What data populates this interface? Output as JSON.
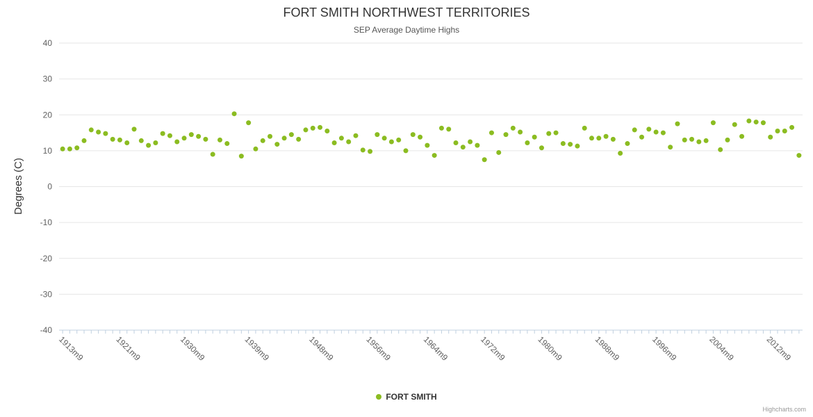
{
  "credits": "Highcharts.com",
  "colors": {
    "series": "#8bbc21",
    "grid": "#e6e6e6",
    "axis_line": "#c0d0e0",
    "tick": "#c0d0e0",
    "axis_label": "#606060",
    "title": "#333333",
    "subtitle": "#555555",
    "legend_text": "#333333",
    "credits_text": "#999999"
  },
  "chart_data": {
    "type": "scatter",
    "title": "FORT SMITH NORTHWEST TERRITORIES",
    "subtitle": "SEP Average Daytime Highs",
    "xlabel": "",
    "ylabel": "Degrees (C)",
    "ylim": [
      -40,
      40
    ],
    "ytick_interval": 10,
    "grid": true,
    "legend_position": "bottom",
    "xticks": [
      {
        "year": 1913,
        "label": "1913m9"
      },
      {
        "year": 1921,
        "label": "1921m9"
      },
      {
        "year": 1930,
        "label": "1930m9"
      },
      {
        "year": 1939,
        "label": "1939m9"
      },
      {
        "year": 1948,
        "label": "1948m9"
      },
      {
        "year": 1956,
        "label": "1956m9"
      },
      {
        "year": 1964,
        "label": "1964m9"
      },
      {
        "year": 1972,
        "label": "1972m9"
      },
      {
        "year": 1980,
        "label": "1980m9"
      },
      {
        "year": 1988,
        "label": "1988m9"
      },
      {
        "year": 1996,
        "label": "1996m9"
      },
      {
        "year": 2004,
        "label": "2004m9"
      },
      {
        "year": 2012,
        "label": "2012m9"
      }
    ],
    "series": [
      {
        "name": "FORT SMITH",
        "start_year": 1913,
        "values": [
          10.5,
          10.5,
          10.8,
          12.8,
          15.8,
          15.2,
          14.8,
          13.2,
          13.0,
          12.2,
          16.0,
          12.8,
          11.5,
          12.2,
          14.8,
          14.2,
          12.5,
          13.5,
          14.5,
          14.0,
          13.2,
          9.0,
          13.0,
          12.0,
          20.3,
          8.5,
          17.8,
          10.5,
          12.8,
          14.0,
          11.8,
          13.5,
          14.5,
          13.2,
          15.8,
          16.3,
          16.5,
          15.5,
          12.2,
          13.5,
          12.5,
          14.2,
          10.2,
          9.8,
          14.5,
          13.5,
          12.5,
          13.0,
          10.0,
          14.5,
          13.8,
          11.5,
          8.7,
          16.3,
          16.0,
          12.2,
          11.0,
          12.5,
          11.5,
          7.5,
          15.0,
          9.5,
          14.5,
          16.3,
          15.2,
          12.2,
          13.8,
          10.8,
          14.8,
          15.0,
          12.0,
          11.8,
          11.3,
          16.3,
          13.5,
          13.5,
          14.0,
          13.2,
          9.3,
          12.0,
          15.8,
          13.8,
          16.0,
          15.2,
          15.0,
          11.0,
          17.5,
          13.0,
          13.2,
          12.5,
          12.8,
          17.8,
          10.3,
          13.0,
          17.3,
          14.0,
          18.3,
          18.0,
          17.8,
          13.8,
          15.5,
          15.5,
          16.5,
          8.7
        ]
      }
    ]
  }
}
